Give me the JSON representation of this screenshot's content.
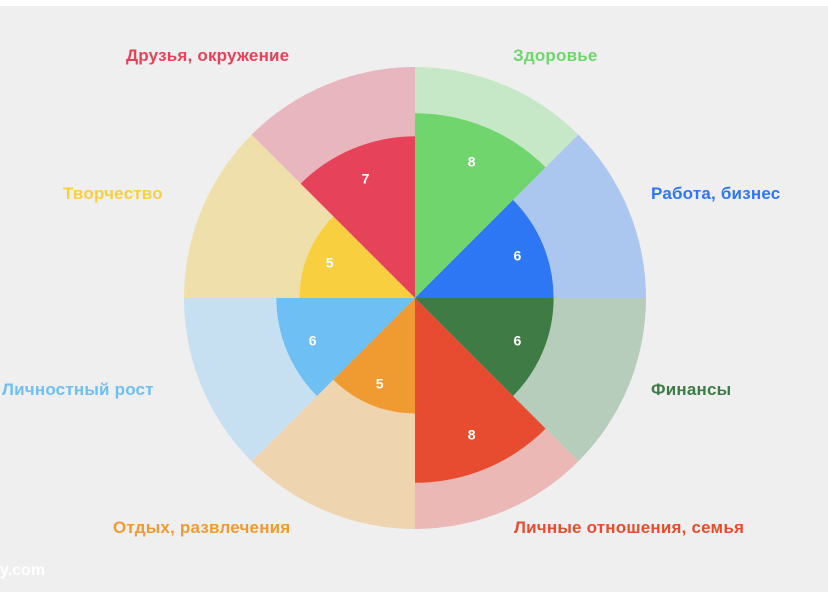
{
  "watermark": "y.com",
  "chart_data": {
    "type": "polar_area",
    "max_value": 10,
    "categories": [
      "Здоровье",
      "Работа, бизнес",
      "Финансы",
      "Личные отношения, семья",
      "Отдых, развлечения",
      "Личностный рост",
      "Творчество",
      "Друзья, окружение"
    ],
    "values": [
      8,
      6,
      6,
      8,
      5,
      6,
      5,
      7
    ],
    "colors": [
      "#6fd56c",
      "#2d76f4",
      "#3e7b45",
      "#e74c30",
      "#f09a32",
      "#6ebff3",
      "#f8cf3f",
      "#e6435a"
    ],
    "background_colors": [
      "#c6e8c6",
      "#abc7f0",
      "#b7cdbb",
      "#ebb8b6",
      "#efd4b0",
      "#c6e0f1",
      "#efe0ab",
      "#e7b6bf"
    ],
    "label_colors": [
      "#6fd56c",
      "#2d76f4",
      "#3e7b45",
      "#e74c30",
      "#f09a32",
      "#6ebff3",
      "#f8cf3f",
      "#e6435a"
    ]
  }
}
